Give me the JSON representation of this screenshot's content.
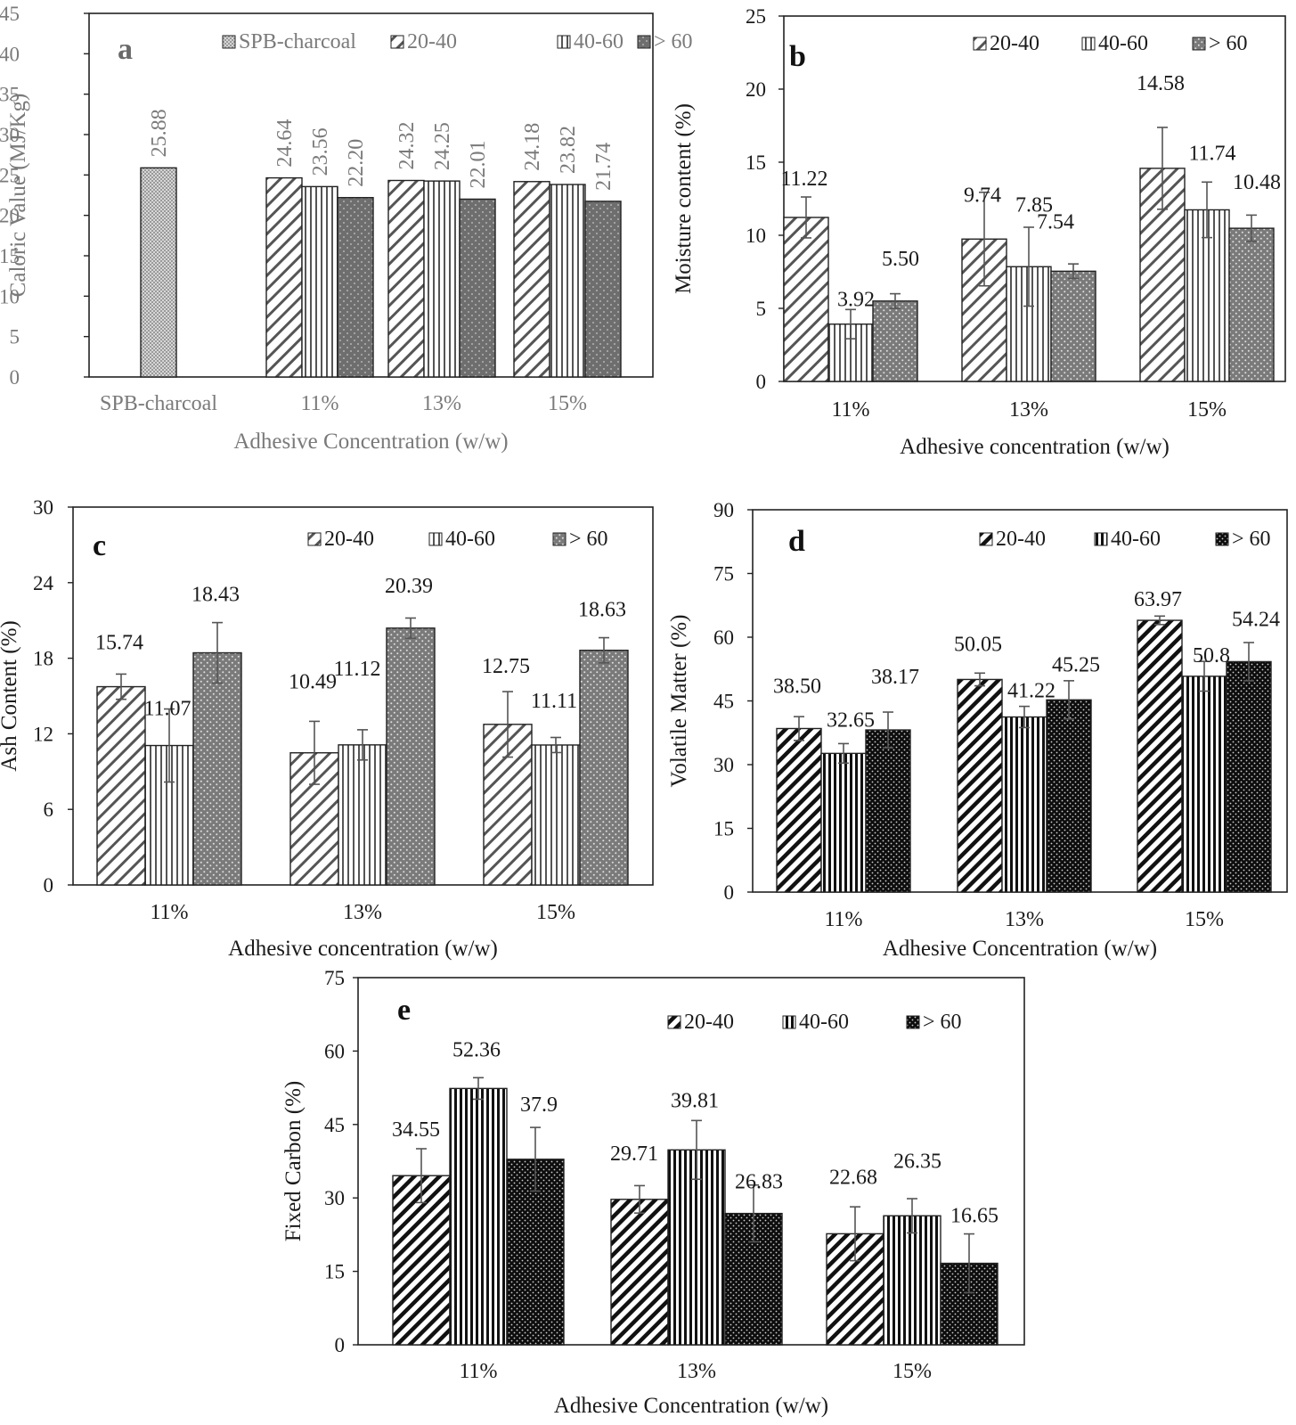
{
  "colors": {
    "ink": "#1a1a1a",
    "grey": "#8c8c8c",
    "panel_a_text": "#7a7a7a"
  },
  "chart_data": [
    {
      "id": "a",
      "panel_label": "a",
      "type": "bar",
      "title": "",
      "xlabel": "Adhesive Concentration (w/w)",
      "ylabel": "Caloric Value (MJ/Kg)",
      "ylim": [
        0,
        45
      ],
      "yticks": [
        "0",
        "5",
        "10",
        "15",
        "20",
        "25",
        "30",
        "35",
        "40",
        "45"
      ],
      "categories": [
        "SPB-charcoal",
        "11%",
        "13%",
        "15%"
      ],
      "legend_position": "top-right",
      "series": [
        {
          "name": "SPB-charcoal",
          "pattern": "light-dots",
          "values": [
            25.88,
            null,
            null,
            null
          ],
          "labels": [
            "25.88",
            null,
            null,
            null
          ],
          "errors": [
            null,
            null,
            null,
            null
          ]
        },
        {
          "name": "20-40",
          "pattern": "diag-light",
          "values": [
            null,
            24.64,
            24.32,
            24.18
          ],
          "labels": [
            null,
            "24.64",
            "24.32",
            "24.18"
          ],
          "errors": [
            null,
            null,
            null,
            null
          ]
        },
        {
          "name": "40-60",
          "pattern": "vert-light",
          "values": [
            null,
            23.56,
            24.25,
            23.82
          ],
          "labels": [
            null,
            "23.56",
            "24.25",
            "23.82"
          ],
          "errors": [
            null,
            null,
            null,
            null
          ]
        },
        {
          "name": "> 60",
          "pattern": "dark-dots",
          "values": [
            null,
            22.2,
            22.01,
            21.74
          ],
          "labels": [
            null,
            "22.20",
            "22.01",
            "21.74"
          ],
          "errors": [
            null,
            null,
            null,
            null
          ]
        }
      ]
    },
    {
      "id": "b",
      "panel_label": "b",
      "type": "bar",
      "title": "",
      "xlabel": "Adhesive concentration (w/w)",
      "ylabel": "Moisture content (%)",
      "ylim": [
        0,
        25
      ],
      "yticks": [
        "0",
        "5",
        "10",
        "15",
        "20",
        "25"
      ],
      "categories": [
        "11%",
        "13%",
        "15%"
      ],
      "legend_position": "top-right",
      "series": [
        {
          "name": "20-40",
          "pattern": "diag-light",
          "values": [
            11.22,
            9.74,
            14.58
          ],
          "labels": [
            "11.22",
            "9.74",
            "14.58"
          ],
          "errors": [
            1.4,
            3.2,
            2.8
          ]
        },
        {
          "name": "40-60",
          "pattern": "vert-light",
          "values": [
            3.92,
            7.85,
            11.74
          ],
          "labels": [
            "3.92",
            "7.85",
            "11.74"
          ],
          "errors": [
            1.0,
            2.7,
            1.9
          ]
        },
        {
          "name": "> 60",
          "pattern": "grey-dots",
          "values": [
            5.5,
            7.54,
            10.48
          ],
          "labels": [
            "5.50",
            "7.54",
            "10.48"
          ],
          "errors": [
            0.5,
            0.5,
            0.9
          ]
        }
      ]
    },
    {
      "id": "c",
      "panel_label": "c",
      "type": "bar",
      "title": "",
      "xlabel": "Adhesive concentration (w/w)",
      "ylabel": "Ash Content (%)",
      "ylim": [
        0,
        30
      ],
      "yticks": [
        "0",
        "6",
        "12",
        "18",
        "24",
        "30"
      ],
      "categories": [
        "11%",
        "13%",
        "15%"
      ],
      "legend_position": "top-right",
      "series": [
        {
          "name": "20-40",
          "pattern": "diag-light",
          "values": [
            15.74,
            10.49,
            12.75
          ],
          "labels": [
            "15.74",
            "10.49",
            "12.75"
          ],
          "errors": [
            1.0,
            2.5,
            2.6
          ]
        },
        {
          "name": "40-60",
          "pattern": "vert-light",
          "values": [
            11.07,
            11.12,
            11.11
          ],
          "labels": [
            "11.07",
            "11.12",
            "11.11"
          ],
          "errors": [
            2.9,
            1.2,
            0.6
          ]
        },
        {
          "name": "> 60",
          "pattern": "grey-dots",
          "values": [
            18.43,
            20.39,
            18.63
          ],
          "labels": [
            "18.43",
            "20.39",
            "18.63"
          ],
          "errors": [
            2.4,
            0.8,
            1.0
          ]
        }
      ]
    },
    {
      "id": "d",
      "panel_label": "d",
      "type": "bar",
      "title": "",
      "xlabel": "Adhesive Concentration (w/w)",
      "ylabel": "Volatile Matter (%)",
      "ylim": [
        0,
        90
      ],
      "yticks": [
        "0",
        "15",
        "30",
        "45",
        "60",
        "75",
        "90"
      ],
      "categories": [
        "11%",
        "13%",
        "15%"
      ],
      "legend_position": "top-right",
      "series": [
        {
          "name": "20-40",
          "pattern": "diag-dark",
          "values": [
            38.5,
            50.05,
            63.97
          ],
          "labels": [
            "38.50",
            "50.05",
            "63.97"
          ],
          "errors": [
            2.8,
            1.5,
            1.0
          ]
        },
        {
          "name": "40-60",
          "pattern": "vert-dark",
          "values": [
            32.65,
            41.22,
            50.8
          ],
          "labels": [
            "32.65",
            "41.22",
            "50.8"
          ],
          "errors": [
            2.3,
            2.5,
            3.5
          ]
        },
        {
          "name": "> 60",
          "pattern": "black-dots",
          "values": [
            38.17,
            45.25,
            54.24
          ],
          "labels": [
            "38.17",
            "45.25",
            "54.24"
          ],
          "errors": [
            4.2,
            4.5,
            4.5
          ]
        }
      ]
    },
    {
      "id": "e",
      "panel_label": "e",
      "type": "bar",
      "title": "",
      "xlabel": "Adhesive Concentration (w/w)",
      "ylabel": "Fixed Carbon (%)",
      "ylim": [
        0,
        75
      ],
      "yticks": [
        "0",
        "15",
        "30",
        "45",
        "60",
        "75"
      ],
      "categories": [
        "11%",
        "13%",
        "15%"
      ],
      "legend_position": "top-right",
      "series": [
        {
          "name": "20-40",
          "pattern": "diag-dark",
          "values": [
            34.55,
            29.71,
            22.68
          ],
          "labels": [
            "34.55",
            "29.71",
            "22.68"
          ],
          "errors": [
            5.5,
            2.8,
            5.5
          ]
        },
        {
          "name": "40-60",
          "pattern": "vert-dark",
          "values": [
            52.36,
            39.81,
            26.35
          ],
          "labels": [
            "52.36",
            "39.81",
            "26.35"
          ],
          "errors": [
            2.2,
            6.0,
            3.5
          ]
        },
        {
          "name": "> 60",
          "pattern": "black-dots",
          "values": [
            37.9,
            26.83,
            16.65
          ],
          "labels": [
            "37.9",
            "26.83",
            "16.65"
          ],
          "errors": [
            6.5,
            5.8,
            6.0
          ]
        }
      ]
    }
  ]
}
